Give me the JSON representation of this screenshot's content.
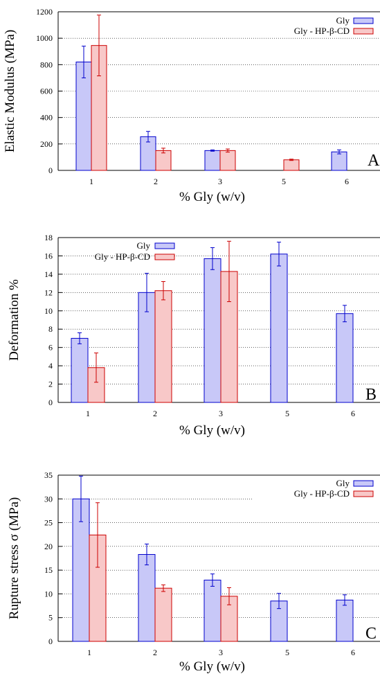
{
  "chart_data": [
    {
      "type": "bar",
      "categories": [
        "1",
        "2",
        "3",
        "5",
        "6"
      ],
      "xlabel": "% Gly (w/v)",
      "ylabel": "Elastic Modulus (MPa)",
      "ylim": [
        0,
        1200
      ],
      "yticks": [
        "0",
        "200",
        "400",
        "600",
        "800",
        "1000",
        "1200"
      ],
      "grid": true,
      "legend_position": "top-right",
      "panel_label": "A",
      "series": [
        {
          "name": "Gly",
          "values": [
            820,
            255,
            150,
            null,
            140
          ],
          "errors": [
            120,
            40,
            5,
            null,
            15
          ],
          "color": "#c8c8f8",
          "edge": "#0000cc"
        },
        {
          "name": "Gly - HP-β-CD",
          "values": [
            945,
            150,
            150,
            80,
            null
          ],
          "errors": [
            230,
            18,
            12,
            5,
            null
          ],
          "color": "#f8c8c8",
          "edge": "#cc0000"
        }
      ]
    },
    {
      "type": "bar",
      "categories": [
        "1",
        "2",
        "3",
        "5",
        "6"
      ],
      "xlabel": "% Gly (w/v)",
      "ylabel": "Deformation %",
      "ylim": [
        0,
        18
      ],
      "yticks": [
        "0",
        "2",
        "4",
        "6",
        "8",
        "10",
        "12",
        "14",
        "16",
        "18"
      ],
      "grid": true,
      "legend_position": "top-left",
      "panel_label": "B",
      "series": [
        {
          "name": "Gly",
          "values": [
            7.0,
            12.0,
            15.7,
            16.2,
            9.7
          ],
          "errors": [
            0.6,
            2.1,
            1.2,
            1.3,
            0.9
          ],
          "color": "#c8c8f8",
          "edge": "#0000cc"
        },
        {
          "name": "Gly - HP-β-CD",
          "values": [
            3.8,
            12.2,
            14.3,
            null,
            null
          ],
          "errors": [
            1.6,
            1.0,
            3.3,
            null,
            null
          ],
          "color": "#f8c8c8",
          "edge": "#cc0000"
        }
      ]
    },
    {
      "type": "bar",
      "categories": [
        "1",
        "2",
        "3",
        "5",
        "6"
      ],
      "xlabel": "% Gly (w/v)",
      "ylabel": "Rupture stress σ (MPa)",
      "ylim": [
        0,
        35
      ],
      "yticks": [
        "0",
        "5",
        "10",
        "15",
        "20",
        "25",
        "30",
        "35"
      ],
      "grid": true,
      "legend_position": "top-right",
      "panel_label": "C",
      "series": [
        {
          "name": "Gly",
          "values": [
            30.0,
            18.3,
            12.9,
            8.5,
            8.7
          ],
          "errors": [
            4.8,
            2.2,
            1.3,
            1.6,
            1.1
          ],
          "color": "#c8c8f8",
          "edge": "#0000cc"
        },
        {
          "name": "Gly - HP-β-CD",
          "values": [
            22.4,
            11.2,
            9.5,
            null,
            null
          ],
          "errors": [
            6.8,
            0.7,
            1.8,
            null,
            null
          ],
          "color": "#f8c8c8",
          "edge": "#cc0000"
        }
      ]
    }
  ]
}
